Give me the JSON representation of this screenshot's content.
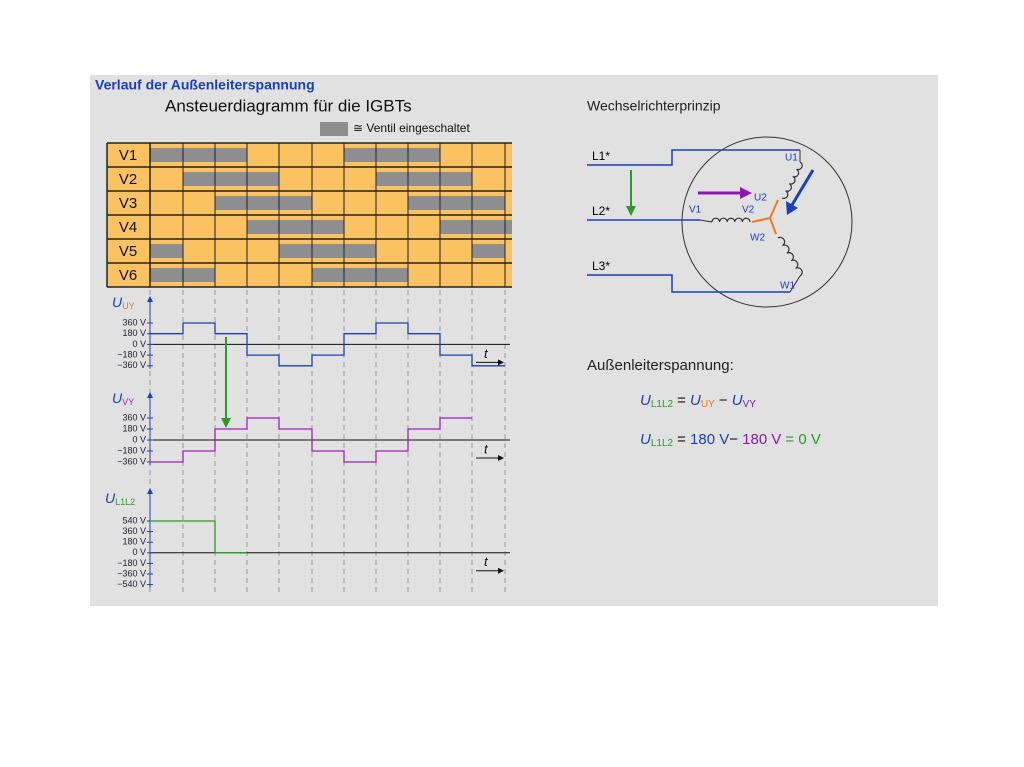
{
  "header": {
    "title": "Verlauf der Außenleiterspannung"
  },
  "switching": {
    "title": "Ansteuerdiagramm für die IGBTs",
    "legend": "≅ Ventil eingeschaltet",
    "rows": [
      "V1",
      "V2",
      "V3",
      "V4",
      "V5",
      "V6"
    ]
  },
  "plots": [
    {
      "symbol": "U",
      "subscript": "UY",
      "ticks": [
        "360 V",
        "180 V",
        "0 V",
        "−180 V",
        "−360 V"
      ],
      "time": "t"
    },
    {
      "symbol": "U",
      "subscript": "VY",
      "ticks": [
        "360 V",
        "180 V",
        "0 V",
        "−180 V",
        "−360 V"
      ],
      "time": "t"
    },
    {
      "symbol": "U",
      "subscript": "L1L2",
      "ticks": [
        "540 V",
        "360 V",
        "180 V",
        "0 V",
        "−180 V",
        "−360 V",
        "−540 V"
      ],
      "time": "t"
    }
  ],
  "principle": {
    "title": "Wechselrichterprinzip",
    "lines": [
      "L1*",
      "L2*",
      "L3*"
    ],
    "windings": [
      "U1",
      "U2",
      "V1",
      "V2",
      "W1",
      "W2"
    ]
  },
  "voltage": {
    "title": "Außenleiterspannung:",
    "formula": [
      "U",
      "L1L2",
      "=",
      "U",
      "UY",
      "−",
      "U",
      "VY"
    ],
    "result": [
      "U",
      "L1L2",
      "=",
      "180 V",
      "−",
      "180 V",
      "=",
      "0 V"
    ]
  }
}
